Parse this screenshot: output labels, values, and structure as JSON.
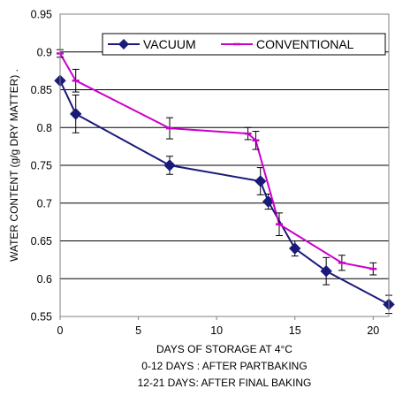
{
  "chart_data": {
    "type": "line",
    "xlabel": "DAYS OF STORAGE AT 4°C",
    "xlabel_notes": [
      "0-12 DAYS : AFTER PARTBAKING",
      "12-21 DAYS: AFTER FINAL BAKING"
    ],
    "ylabel": "WATER CONTENT (g/g DRY MATTER) .",
    "xlim": [
      0,
      21
    ],
    "ylim": [
      0.55,
      0.95
    ],
    "x_ticks": [
      "0",
      "5",
      "10",
      "15",
      "20"
    ],
    "y_ticks": [
      "0.55",
      "0.6",
      "0.65",
      "0.7",
      "0.75",
      "0.8",
      "0.85",
      "0.9",
      "0.95"
    ],
    "grid": "horizontal",
    "legend_position": "top-right",
    "series": [
      {
        "name": "VACUUM",
        "color": "#1a1a7a",
        "marker": "diamond",
        "points": [
          {
            "x": 0,
            "y": 0.862,
            "err": 0.0
          },
          {
            "x": 1,
            "y": 0.818,
            "err": 0.025
          },
          {
            "x": 7,
            "y": 0.75,
            "err": 0.012
          },
          {
            "x": 12.8,
            "y": 0.729,
            "err": 0.018
          },
          {
            "x": 13.3,
            "y": 0.702,
            "err": 0.01
          },
          {
            "x": 15,
            "y": 0.64,
            "err": 0.01
          },
          {
            "x": 17,
            "y": 0.61,
            "err": 0.018
          },
          {
            "x": 21,
            "y": 0.566,
            "err": 0.012
          }
        ]
      },
      {
        "name": "CONVENTIONAL",
        "color": "#cc00cc",
        "marker": "dash",
        "points": [
          {
            "x": 0,
            "y": 0.898,
            "err": 0.005
          },
          {
            "x": 1,
            "y": 0.862,
            "err": 0.015
          },
          {
            "x": 7,
            "y": 0.799,
            "err": 0.014
          },
          {
            "x": 12,
            "y": 0.792,
            "err": 0.008
          },
          {
            "x": 12.5,
            "y": 0.783,
            "err": 0.012
          },
          {
            "x": 14,
            "y": 0.672,
            "err": 0.015
          },
          {
            "x": 18,
            "y": 0.621,
            "err": 0.01
          },
          {
            "x": 20,
            "y": 0.613,
            "err": 0.008
          }
        ]
      }
    ]
  }
}
